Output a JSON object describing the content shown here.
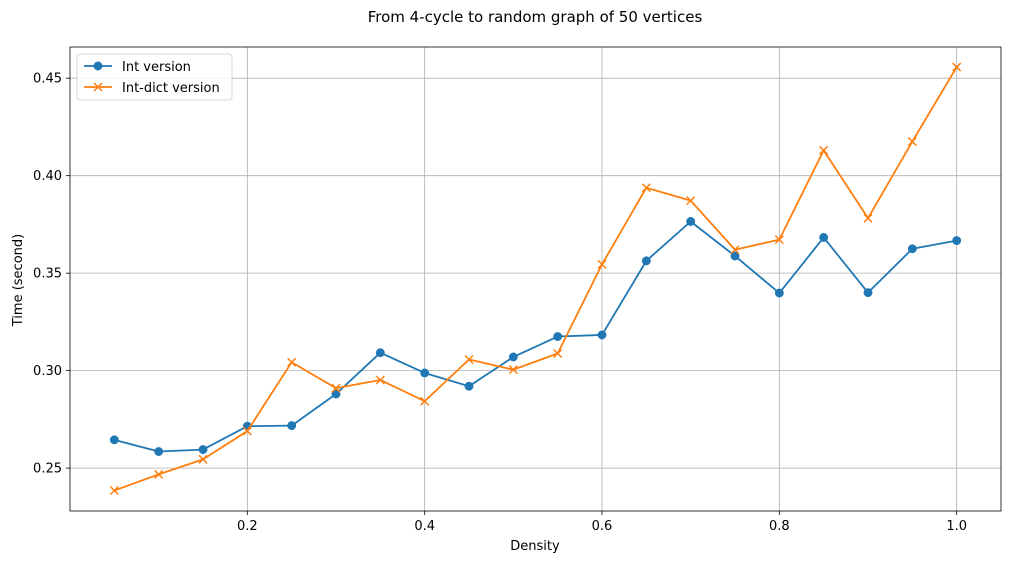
{
  "chart_data": {
    "type": "line",
    "title": "From 4-cycle to random graph of 50 vertices",
    "xlabel": "Density",
    "ylabel": "Time (second)",
    "xlim": [
      0.0,
      1.05
    ],
    "ylim": [
      0.228,
      0.466
    ],
    "xticks": [
      0.2,
      0.4,
      0.6,
      0.8,
      1.0
    ],
    "xtick_labels": [
      "0.2",
      "0.4",
      "0.6",
      "0.8",
      "1.0"
    ],
    "yticks": [
      0.25,
      0.3,
      0.35,
      0.4,
      0.45
    ],
    "ytick_labels": [
      "0.25",
      "0.30",
      "0.35",
      "0.40",
      "0.45"
    ],
    "grid": true,
    "legend": "upper-left",
    "x": [
      0.05,
      0.1,
      0.15,
      0.2,
      0.25,
      0.3,
      0.35,
      0.4,
      0.45,
      0.5,
      0.55,
      0.6,
      0.65,
      0.7,
      0.75,
      0.8,
      0.85,
      0.9,
      0.95,
      1.0
    ],
    "series": [
      {
        "name": "Int version",
        "color": "#1f77b4",
        "marker": "circle",
        "values": [
          0.2645,
          0.2585,
          0.2595,
          0.2715,
          0.2718,
          0.288,
          0.3092,
          0.2988,
          0.292,
          0.307,
          0.3175,
          0.3183,
          0.3563,
          0.3765,
          0.3588,
          0.3398,
          0.3683,
          0.34,
          0.3625,
          0.3667
        ]
      },
      {
        "name": "Int-dict version",
        "color": "#ff7f0e",
        "marker": "x",
        "values": [
          0.2385,
          0.2468,
          0.2545,
          0.269,
          0.3043,
          0.291,
          0.2952,
          0.2843,
          0.3057,
          0.3005,
          0.3088,
          0.3545,
          0.3938,
          0.3872,
          0.362,
          0.3672,
          0.413,
          0.3782,
          0.4175,
          0.4557
        ]
      }
    ]
  }
}
